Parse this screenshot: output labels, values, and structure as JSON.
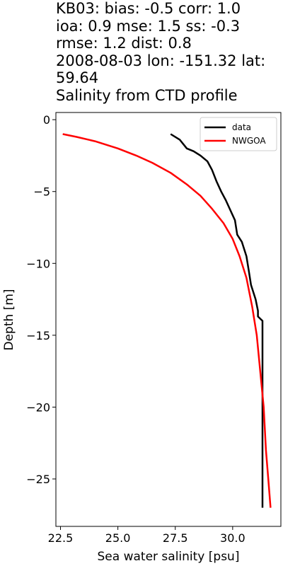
{
  "title_lines": [
    "KB03: bias: -0.5  corr: 1.0",
    "ioa: 0.9  mse: 1.5  ss: -0.3",
    "rmse: 1.2  dist: 0.8",
    "2008-08-03 lon: -151.32 lat:",
    "59.64",
    "Salinity from CTD profile"
  ],
  "chart_data": {
    "type": "line",
    "xlabel": "Sea water salinity [psu]",
    "ylabel": "Depth [m]",
    "xlim": [
      22.3,
      32.1
    ],
    "ylim": [
      -28.3,
      0.5
    ],
    "xticks": [
      22.5,
      25.0,
      27.5,
      30.0
    ],
    "xtick_labels": [
      "22.5",
      "25.0",
      "27.5",
      "30.0"
    ],
    "yticks": [
      0,
      -5,
      -10,
      -15,
      -20,
      -25
    ],
    "ytick_labels": [
      "0",
      "−5",
      "−10",
      "−15",
      "−20",
      "−25"
    ],
    "grid": false,
    "legend_position": "top-right",
    "series": [
      {
        "name": "data",
        "color": "#000000",
        "points": [
          [
            27.3,
            -1.0
          ],
          [
            27.7,
            -1.4
          ],
          [
            27.9,
            -1.8
          ],
          [
            28.0,
            -2.0
          ],
          [
            28.3,
            -2.2
          ],
          [
            28.6,
            -2.5
          ],
          [
            28.9,
            -2.9
          ],
          [
            29.1,
            -3.5
          ],
          [
            29.3,
            -4.3
          ],
          [
            29.5,
            -5.0
          ],
          [
            29.7,
            -5.6
          ],
          [
            29.9,
            -6.3
          ],
          [
            30.1,
            -7.0
          ],
          [
            30.2,
            -8.0
          ],
          [
            30.4,
            -8.5
          ],
          [
            30.6,
            -9.5
          ],
          [
            30.7,
            -10.5
          ],
          [
            30.8,
            -11.5
          ],
          [
            31.0,
            -12.5
          ],
          [
            31.1,
            -13.3
          ],
          [
            31.1,
            -13.7
          ],
          [
            31.3,
            -14.0
          ],
          [
            31.3,
            -18.0
          ],
          [
            31.3,
            -22.0
          ],
          [
            31.3,
            -27.0
          ]
        ]
      },
      {
        "name": "NWGOA",
        "color": "#ff0000",
        "points": [
          [
            22.6,
            -1.0
          ],
          [
            23.2,
            -1.2
          ],
          [
            24.0,
            -1.5
          ],
          [
            25.0,
            -2.0
          ],
          [
            25.8,
            -2.5
          ],
          [
            26.5,
            -3.0
          ],
          [
            27.3,
            -3.7
          ],
          [
            28.0,
            -4.5
          ],
          [
            28.6,
            -5.3
          ],
          [
            29.1,
            -6.2
          ],
          [
            29.6,
            -7.2
          ],
          [
            30.0,
            -8.3
          ],
          [
            30.3,
            -9.5
          ],
          [
            30.6,
            -11.0
          ],
          [
            30.85,
            -13.0
          ],
          [
            31.05,
            -15.0
          ],
          [
            31.2,
            -17.5
          ],
          [
            31.35,
            -20.0
          ],
          [
            31.45,
            -23.0
          ],
          [
            31.55,
            -25.0
          ],
          [
            31.65,
            -27.0
          ]
        ]
      }
    ]
  }
}
